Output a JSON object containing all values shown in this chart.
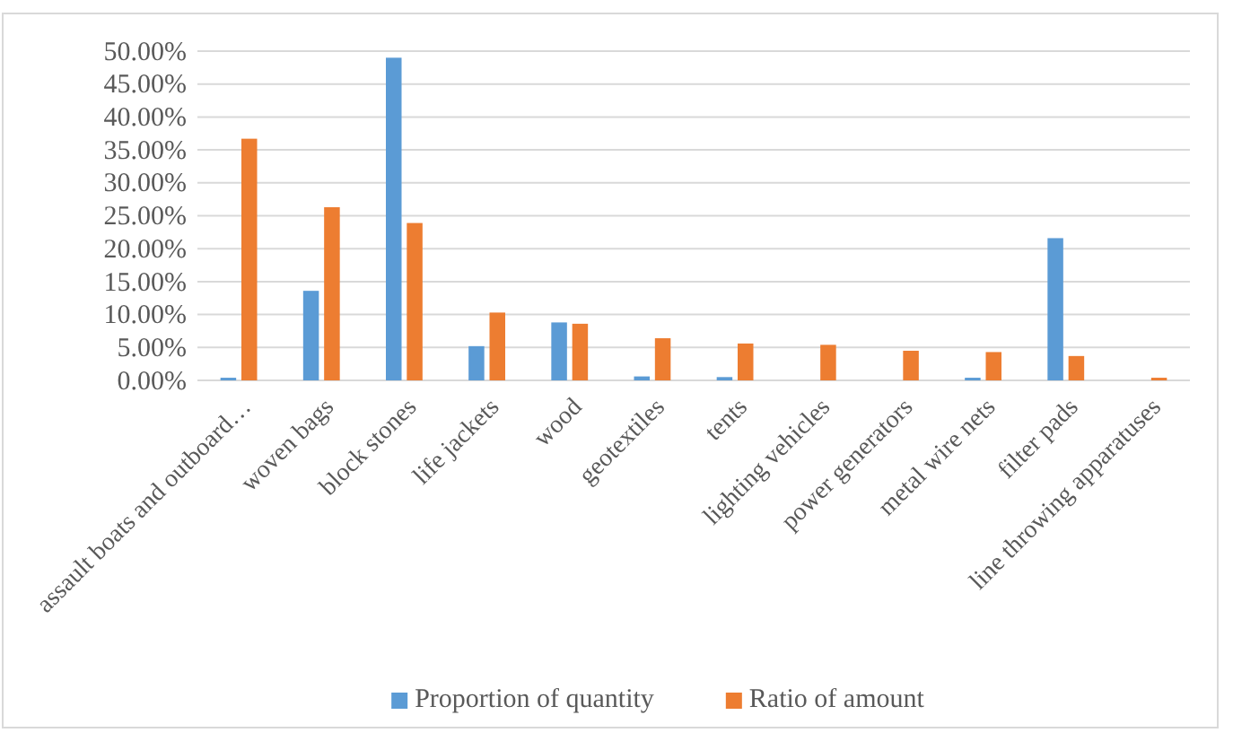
{
  "chart_data": {
    "type": "bar",
    "categories": [
      "assault boats and outboard…",
      "woven bags",
      "block stones",
      "life jackets",
      "wood",
      "geotextiles",
      "tents",
      "lighting vehicles",
      "power generators",
      "metal wire nets",
      "filter pads",
      "line throwing apparatuses"
    ],
    "series": [
      {
        "name": "Proportion of quantity",
        "color": "#5b9bd5",
        "values": [
          0.4,
          13.6,
          49.0,
          5.2,
          8.8,
          0.6,
          0.5,
          0,
          0,
          0.4,
          21.6,
          0
        ]
      },
      {
        "name": "Ratio of amount",
        "color": "#ed7d31",
        "values": [
          36.7,
          26.3,
          23.9,
          10.3,
          8.6,
          6.4,
          5.6,
          5.4,
          4.5,
          4.3,
          3.7,
          0.4
        ]
      }
    ],
    "ylim": [
      0,
      50
    ],
    "yticks": [
      {
        "value": 0,
        "label": "0.00%"
      },
      {
        "value": 5,
        "label": "5.00%"
      },
      {
        "value": 10,
        "label": "10.00%"
      },
      {
        "value": 15,
        "label": "15.00%"
      },
      {
        "value": 20,
        "label": "20.00%"
      },
      {
        "value": 25,
        "label": "25.00%"
      },
      {
        "value": 30,
        "label": "30.00%"
      },
      {
        "value": 35,
        "label": "35.00%"
      },
      {
        "value": 40,
        "label": "40.00%"
      },
      {
        "value": 45,
        "label": "45.00%"
      },
      {
        "value": 50,
        "label": "50.00%"
      }
    ],
    "grid": "y",
    "legend": "bottom"
  }
}
